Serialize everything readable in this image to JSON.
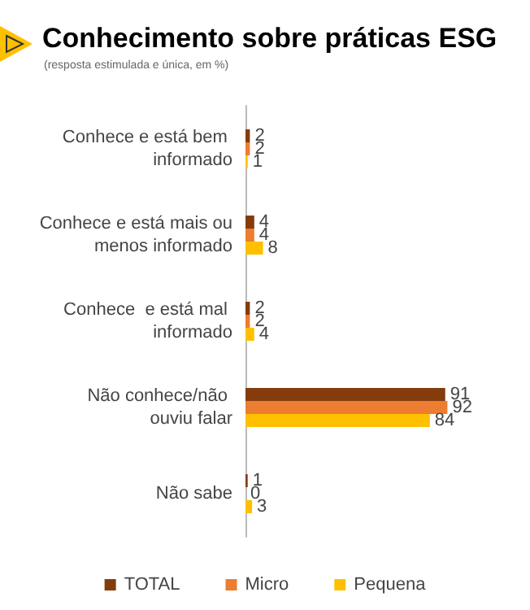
{
  "chart_data": {
    "type": "bar",
    "orientation": "horizontal",
    "title": "Conhecimento sobre práticas ESG",
    "subtitle": "(resposta estimulada e única, em %)",
    "categories": [
      "Conhece e está bem informado",
      "Conhece e está mais ou menos informado",
      "Conhece  e está mal informado",
      "Não conhece/não ouviu falar",
      "Não sabe"
    ],
    "series": [
      {
        "name": "TOTAL",
        "color": "#843c0c",
        "values": [
          2,
          4,
          2,
          91,
          1
        ]
      },
      {
        "name": "Micro",
        "color": "#ed7d31",
        "values": [
          2,
          4,
          2,
          92,
          0
        ]
      },
      {
        "name": "Pequena",
        "color": "#ffc000",
        "values": [
          1,
          8,
          4,
          84,
          3
        ]
      }
    ],
    "data_labels": true,
    "legend": "bottom"
  }
}
